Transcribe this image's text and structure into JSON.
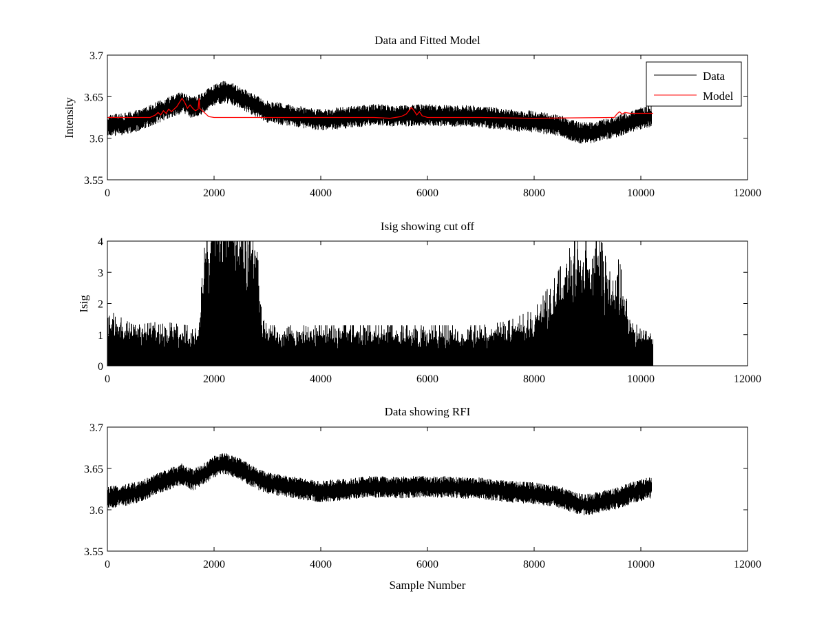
{
  "chart_data": [
    {
      "type": "line",
      "title": "Data and Fitted Model",
      "xlabel": "",
      "ylabel": "Intensity",
      "xlim": [
        0,
        12000
      ],
      "ylim": [
        3.55,
        3.7
      ],
      "xticks": [
        0,
        2000,
        4000,
        6000,
        8000,
        10000,
        12000
      ],
      "yticks": [
        3.55,
        3.6,
        3.65,
        3.7
      ],
      "legend": {
        "location": "top-right",
        "entries": [
          "Data",
          "Model"
        ]
      },
      "noise": 0.011,
      "series": [
        {
          "name": "Data",
          "color": "#000000",
          "x": [
            0,
            300,
            600,
            900,
            1200,
            1400,
            1600,
            1800,
            2000,
            2200,
            2400,
            2600,
            2800,
            3000,
            3500,
            4000,
            4500,
            5000,
            5500,
            6000,
            6500,
            7000,
            7500,
            8000,
            8500,
            8800,
            9000,
            9300,
            9600,
            9900,
            10200
          ],
          "values": [
            3.615,
            3.617,
            3.622,
            3.63,
            3.638,
            3.643,
            3.636,
            3.643,
            3.652,
            3.656,
            3.652,
            3.645,
            3.638,
            3.632,
            3.627,
            3.622,
            3.625,
            3.628,
            3.627,
            3.628,
            3.627,
            3.626,
            3.622,
            3.62,
            3.615,
            3.607,
            3.606,
            3.61,
            3.615,
            3.622,
            3.627
          ]
        },
        {
          "name": "Model",
          "color": "#ff0000",
          "x": [
            0,
            800,
            900,
            950,
            1000,
            1050,
            1100,
            1150,
            1200,
            1300,
            1400,
            1450,
            1500,
            1550,
            1600,
            1650,
            1700,
            1720,
            1730,
            1800,
            1900,
            2000,
            5000,
            5300,
            5500,
            5600,
            5700,
            5750,
            5800,
            5850,
            5900,
            6000,
            7000,
            8000,
            9500,
            9550,
            9600,
            9650,
            9700,
            9800,
            9900,
            10000,
            10230
          ],
          "values": [
            3.625,
            3.625,
            3.628,
            3.631,
            3.628,
            3.633,
            3.63,
            3.635,
            3.632,
            3.638,
            3.648,
            3.643,
            3.636,
            3.64,
            3.636,
            3.633,
            3.635,
            3.648,
            3.636,
            3.632,
            3.626,
            3.625,
            3.625,
            3.624,
            3.626,
            3.629,
            3.637,
            3.633,
            3.628,
            3.632,
            3.627,
            3.625,
            3.625,
            3.624,
            3.625,
            3.629,
            3.632,
            3.629,
            3.631,
            3.63,
            3.63,
            3.63,
            3.63
          ]
        }
      ]
    },
    {
      "type": "line",
      "title": "Isig showing cut off",
      "xlabel": "",
      "ylabel": "Isig",
      "xlim": [
        0,
        12000
      ],
      "ylim": [
        0,
        4
      ],
      "xticks": [
        0,
        2000,
        4000,
        6000,
        8000,
        10000,
        12000
      ],
      "yticks": [
        0,
        1,
        2,
        3,
        4
      ],
      "noise": 1.0,
      "series": [
        {
          "name": "Isig",
          "color": "#000000",
          "x": [
            0,
            500,
            1000,
            1500,
            1700,
            1800,
            1900,
            2000,
            2200,
            2400,
            2600,
            2800,
            2900,
            3000,
            4000,
            5000,
            6000,
            7000,
            7500,
            8000,
            8400,
            8700,
            9000,
            9300,
            9600,
            9800,
            10000,
            10230
          ],
          "values": [
            0.7,
            0.5,
            0.55,
            0.5,
            0.45,
            1.3,
            2.1,
            2.1,
            2.3,
            2.0,
            1.9,
            1.7,
            0.6,
            0.5,
            0.5,
            0.5,
            0.5,
            0.5,
            0.55,
            0.7,
            1.1,
            1.5,
            1.7,
            1.5,
            1.3,
            0.6,
            0.45,
            0.4
          ]
        }
      ]
    },
    {
      "type": "line",
      "title": "Data showing RFI",
      "xlabel": "Sample Number",
      "ylabel": "",
      "xlim": [
        0,
        12000
      ],
      "ylim": [
        3.55,
        3.7
      ],
      "xticks": [
        0,
        2000,
        4000,
        6000,
        8000,
        10000,
        12000
      ],
      "yticks": [
        3.55,
        3.6,
        3.65,
        3.7
      ],
      "noise": 0.011,
      "series": [
        {
          "name": "Data",
          "color": "#000000",
          "x": [
            0,
            300,
            600,
            900,
            1200,
            1400,
            1600,
            1800,
            2000,
            2200,
            2400,
            2600,
            2800,
            3000,
            3500,
            4000,
            4500,
            5000,
            5500,
            6000,
            6500,
            7000,
            7500,
            8000,
            8500,
            8800,
            9000,
            9300,
            9600,
            9900,
            10200
          ],
          "values": [
            3.615,
            3.617,
            3.622,
            3.63,
            3.638,
            3.643,
            3.636,
            3.643,
            3.652,
            3.656,
            3.652,
            3.645,
            3.638,
            3.632,
            3.627,
            3.622,
            3.625,
            3.628,
            3.627,
            3.628,
            3.627,
            3.626,
            3.622,
            3.62,
            3.615,
            3.607,
            3.606,
            3.61,
            3.615,
            3.622,
            3.627
          ]
        }
      ]
    }
  ]
}
